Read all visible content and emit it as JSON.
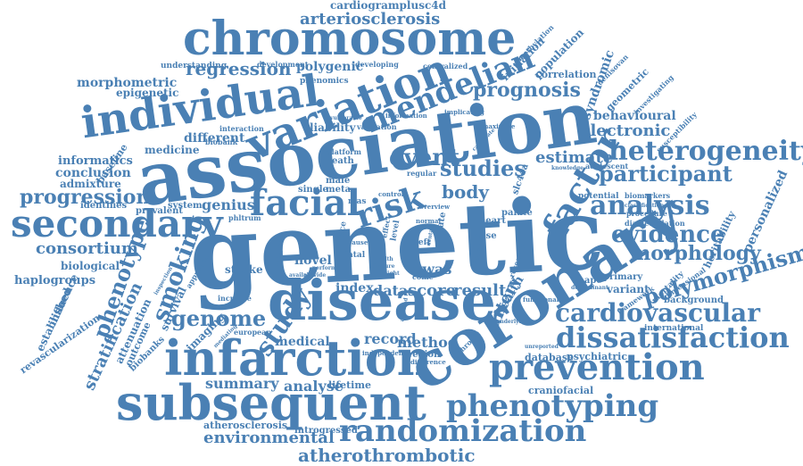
{
  "cloud": {
    "color": "#4a80b4",
    "words": [
      "genetic",
      "association",
      "disease",
      "coronary",
      "subsequent",
      "infarction",
      "chromosome",
      "individual",
      "variation",
      "secondary",
      "facial",
      "prevention",
      "dissatisfaction",
      "factor",
      "randomization",
      "cardiovascular",
      "phenotyping",
      "heterogeneity",
      "analysis",
      "risk",
      "mendelian",
      "event",
      "participant",
      "polymorphism",
      "study",
      "evidence",
      "smoking",
      "genome",
      "morphology",
      "progression",
      "prognosis",
      "regression",
      "studies",
      "phenotype",
      "atherothrombotic",
      "environmental",
      "consortium",
      "stratification",
      "electronic",
      "arteriosclerosis",
      "body",
      "estimate",
      "analyse",
      "summary",
      "artery",
      "method",
      "medical",
      "record",
      "data",
      "score",
      "result",
      "index",
      "gwas",
      "novel",
      "health",
      "morphometric",
      "epigenetic",
      "polygenic",
      "behavioural",
      "variant",
      "different",
      "conclusion",
      "informatics",
      "admixture",
      "genius",
      "haplogroups",
      "biological",
      "cardiogramplusc4d",
      "lifetime",
      "liability",
      "medicine",
      "attenuation",
      "survival",
      "imaging",
      "stroke",
      "syndromic",
      "personalized",
      "heritability",
      "initiation",
      "population",
      "correlation",
      "geometric",
      "database",
      "psychiatric",
      "craniofacial",
      "atherosclerosis",
      "introgressed",
      "region",
      "established",
      "influence",
      "revascularization",
      "outcome",
      "biobanks",
      "baseline",
      "identifies",
      "prevalent",
      "system",
      "understanding",
      "development",
      "phenomics",
      "interaction",
      "validation",
      "biobank",
      "death",
      "platform",
      "single",
      "male",
      "meta",
      "mas",
      "case",
      "primary",
      "shape",
      "potential",
      "adolescent",
      "framework",
      "international",
      "background",
      "dimensional",
      "mortality",
      "denisovan",
      "investigating",
      "methylation",
      "centralized",
      "developing",
      "maximize",
      "implicating",
      "information",
      "vulnerable",
      "knowledge",
      "procedure",
      "diamethylation",
      "biomarkers",
      "susceptibility",
      "palate",
      "heart",
      "cleft",
      "face",
      "fatal",
      "european",
      "increase",
      "phltrum",
      "caliper",
      "approach",
      "research",
      "slc44a",
      "come",
      "female",
      "regular",
      "control",
      "normal",
      "overview",
      "difference",
      "independent",
      "chronic",
      "functional",
      "underlying",
      "unreported",
      "perform",
      "feature",
      "width",
      "height",
      "cause",
      "effect",
      "level",
      "affected",
      "available",
      "provide",
      "rate",
      "dental",
      "mediating",
      "inspection",
      "candidate",
      "determinant",
      "classification"
    ]
  }
}
